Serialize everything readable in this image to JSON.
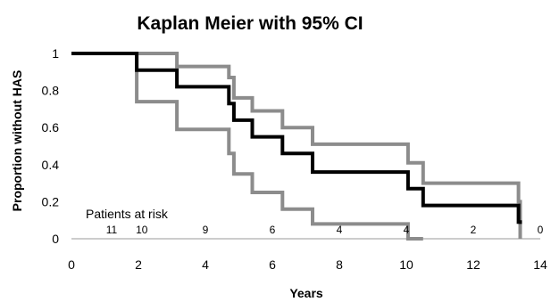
{
  "chart_data": {
    "type": "line",
    "title": "Kaplan Meier with 95% CI",
    "xlabel": "Years",
    "ylabel": "Proportion without HAS",
    "xlim": [
      0,
      14
    ],
    "ylim": [
      0,
      1
    ],
    "x_ticks": [
      "0",
      "2",
      "4",
      "6",
      "8",
      "10",
      "12",
      "14"
    ],
    "y_ticks": [
      "0",
      "0.2",
      "0.4",
      "0.6",
      "0.8",
      "1"
    ],
    "grid": false,
    "legend": "none",
    "colors": {
      "estimate": "#000000",
      "ci": "#8c8c8c"
    },
    "series": [
      {
        "values": [
          [
            0,
            1
          ],
          [
            1.95,
            1
          ],
          [
            1.95,
            0.91
          ],
          [
            3.15,
            0.91
          ],
          [
            3.15,
            0.82
          ],
          [
            4.7,
            0.82
          ],
          [
            4.7,
            0.73
          ],
          [
            4.85,
            0.73
          ],
          [
            4.85,
            0.64
          ],
          [
            5.4,
            0.64
          ],
          [
            5.4,
            0.55
          ],
          [
            6.3,
            0.55
          ],
          [
            6.3,
            0.46
          ],
          [
            7.2,
            0.46
          ],
          [
            7.2,
            0.36
          ],
          [
            10.05,
            0.36
          ],
          [
            10.05,
            0.27
          ],
          [
            10.5,
            0.27
          ],
          [
            10.5,
            0.18
          ],
          [
            13.35,
            0.18
          ],
          [
            13.35,
            0.09
          ],
          [
            13.4,
            0.09
          ],
          [
            13.4,
            0.08
          ]
        ]
      },
      {
        "values": [
          [
            0,
            1
          ],
          [
            3.15,
            1
          ],
          [
            3.15,
            0.93
          ],
          [
            4.7,
            0.93
          ],
          [
            4.7,
            0.87
          ],
          [
            4.85,
            0.87
          ],
          [
            4.85,
            0.76
          ],
          [
            5.4,
            0.76
          ],
          [
            5.4,
            0.69
          ],
          [
            6.3,
            0.69
          ],
          [
            6.3,
            0.6
          ],
          [
            7.2,
            0.6
          ],
          [
            7.2,
            0.51
          ],
          [
            10.05,
            0.51
          ],
          [
            10.05,
            0.41
          ],
          [
            10.5,
            0.41
          ],
          [
            10.5,
            0.3
          ],
          [
            13.35,
            0.3
          ],
          [
            13.35,
            0.2
          ],
          [
            13.4,
            0.2
          ],
          [
            13.4,
            0
          ]
        ]
      },
      {
        "values": [
          [
            0,
            1
          ],
          [
            1.95,
            1
          ],
          [
            1.95,
            0.74
          ],
          [
            3.15,
            0.74
          ],
          [
            3.15,
            0.59
          ],
          [
            4.7,
            0.59
          ],
          [
            4.7,
            0.46
          ],
          [
            4.85,
            0.46
          ],
          [
            4.85,
            0.35
          ],
          [
            5.4,
            0.35
          ],
          [
            5.4,
            0.25
          ],
          [
            6.3,
            0.25
          ],
          [
            6.3,
            0.16
          ],
          [
            7.2,
            0.16
          ],
          [
            7.2,
            0.08
          ],
          [
            10.05,
            0.08
          ],
          [
            10.05,
            0
          ],
          [
            10.5,
            0
          ]
        ]
      }
    ],
    "at_risk": {
      "label": "Patients at risk",
      "entries": [
        {
          "x": 1.2,
          "count": "11"
        },
        {
          "x": 2.1,
          "count": "10"
        },
        {
          "x": 4.0,
          "count": "9"
        },
        {
          "x": 6.0,
          "count": "6"
        },
        {
          "x": 8.0,
          "count": "4"
        },
        {
          "x": 10.0,
          "count": "4"
        },
        {
          "x": 12.0,
          "count": "2"
        },
        {
          "x": 14.0,
          "count": "0"
        }
      ]
    }
  }
}
